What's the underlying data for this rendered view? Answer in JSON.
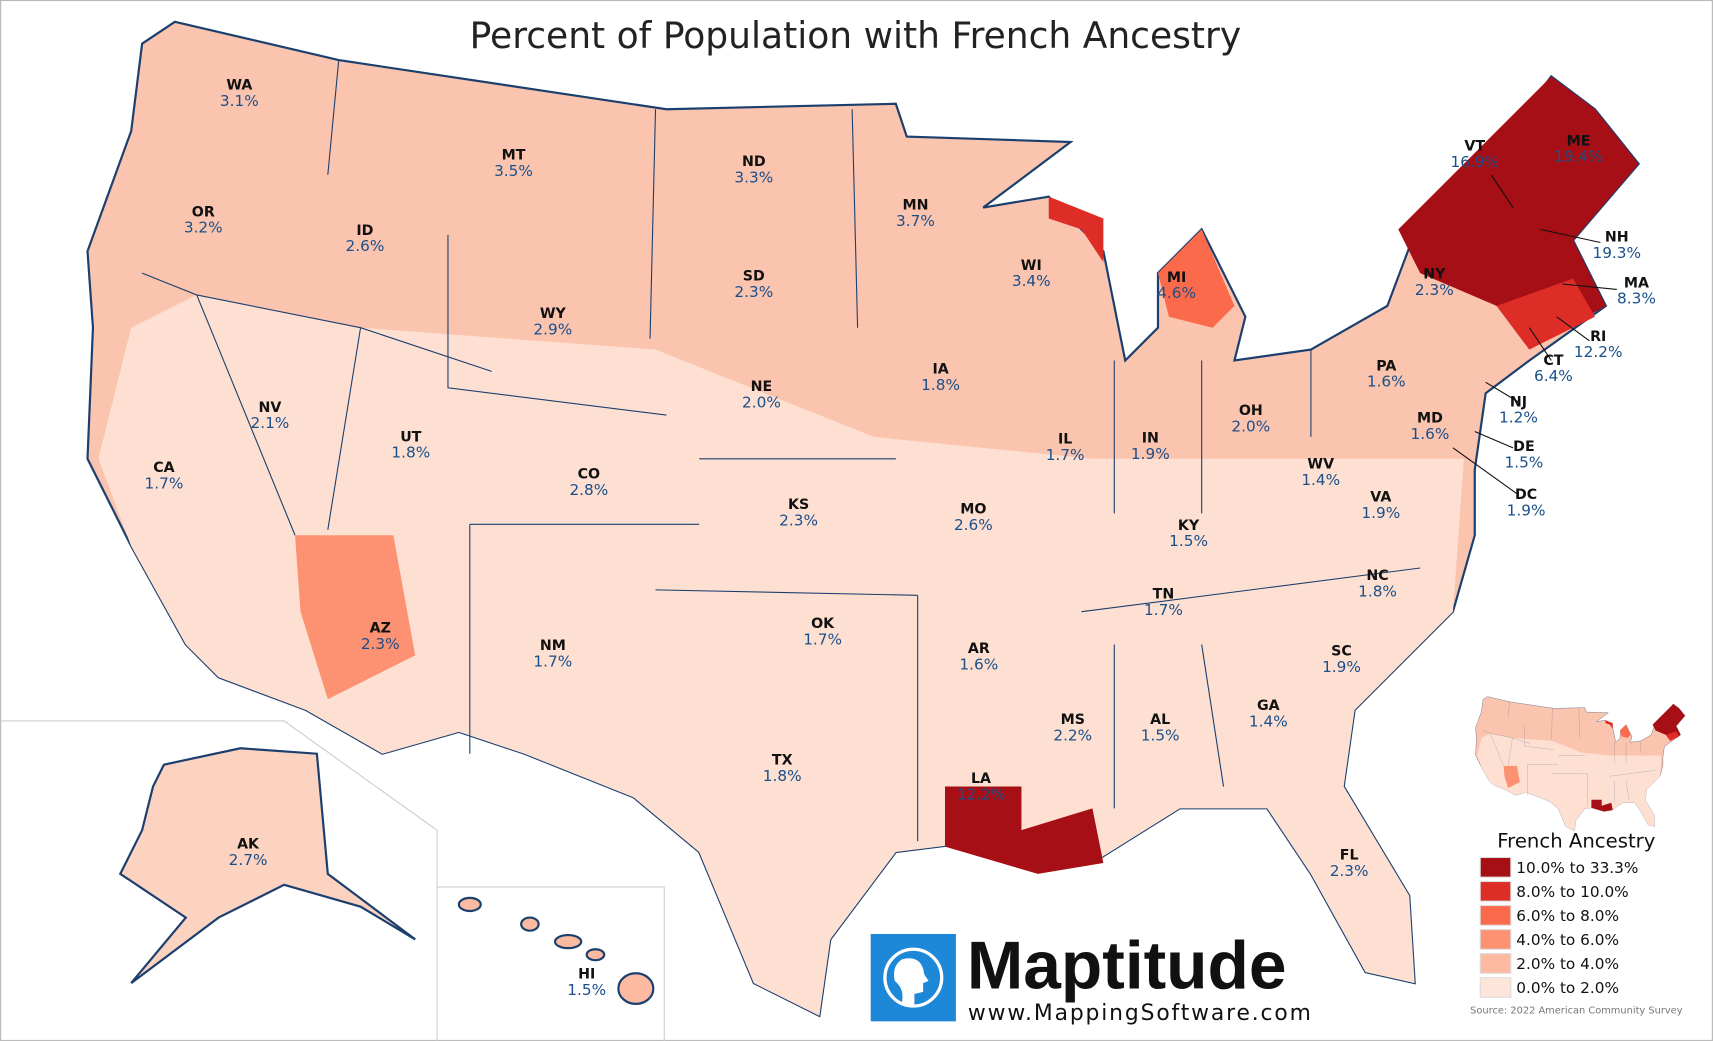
{
  "title": "Percent of Population with French Ancestry",
  "legend": {
    "title": "French Ancestry",
    "classes": [
      {
        "label": "10.0% to 33.3%",
        "color": "#a50f15"
      },
      {
        "label": "8.0% to 10.0%",
        "color": "#de2d26"
      },
      {
        "label": "6.0% to 8.0%",
        "color": "#fb6a4a"
      },
      {
        "label": "4.0% to 6.0%",
        "color": "#fc9272"
      },
      {
        "label": "2.0% to 4.0%",
        "color": "#fcbba1"
      },
      {
        "label": "0.0% to 2.0%",
        "color": "#fee5d9"
      }
    ]
  },
  "source": "Source: 2022 American Community Survey",
  "branding": {
    "name": "Maptitude",
    "url": "www.MappingSoftware.com",
    "logo_icon": "maptitude-globe-head-logo"
  },
  "colors": {
    "border": "#1b3f6e",
    "label_value": "#1a4f8a"
  },
  "states": [
    {
      "abbr": "WA",
      "value": "3.1%"
    },
    {
      "abbr": "MT",
      "value": "3.5%"
    },
    {
      "abbr": "ND",
      "value": "3.3%"
    },
    {
      "abbr": "MN",
      "value": "3.7%"
    },
    {
      "abbr": "OR",
      "value": "3.2%"
    },
    {
      "abbr": "ID",
      "value": "2.6%"
    },
    {
      "abbr": "SD",
      "value": "2.3%"
    },
    {
      "abbr": "WY",
      "value": "2.9%"
    },
    {
      "abbr": "WI",
      "value": "3.4%"
    },
    {
      "abbr": "MI",
      "value": "4.6%"
    },
    {
      "abbr": "NY",
      "value": "2.3%"
    },
    {
      "abbr": "VT",
      "value": "16.9%"
    },
    {
      "abbr": "ME",
      "value": "19.4%"
    },
    {
      "abbr": "NH",
      "value": "19.3%"
    },
    {
      "abbr": "MA",
      "value": "8.3%"
    },
    {
      "abbr": "RI",
      "value": "12.2%"
    },
    {
      "abbr": "CT",
      "value": "6.4%"
    },
    {
      "abbr": "IA",
      "value": "1.8%"
    },
    {
      "abbr": "NE",
      "value": "2.0%"
    },
    {
      "abbr": "NV",
      "value": "2.1%"
    },
    {
      "abbr": "UT",
      "value": "1.8%"
    },
    {
      "abbr": "PA",
      "value": "1.6%"
    },
    {
      "abbr": "OH",
      "value": "2.0%"
    },
    {
      "abbr": "IL",
      "value": "1.7%"
    },
    {
      "abbr": "IN",
      "value": "1.9%"
    },
    {
      "abbr": "NJ",
      "value": "1.2%"
    },
    {
      "abbr": "MD",
      "value": "1.6%"
    },
    {
      "abbr": "DE",
      "value": "1.5%"
    },
    {
      "abbr": "DC",
      "value": "1.9%"
    },
    {
      "abbr": "CA",
      "value": "1.7%"
    },
    {
      "abbr": "CO",
      "value": "2.8%"
    },
    {
      "abbr": "KS",
      "value": "2.3%"
    },
    {
      "abbr": "MO",
      "value": "2.6%"
    },
    {
      "abbr": "WV",
      "value": "1.4%"
    },
    {
      "abbr": "VA",
      "value": "1.9%"
    },
    {
      "abbr": "KY",
      "value": "1.5%"
    },
    {
      "abbr": "TN",
      "value": "1.7%"
    },
    {
      "abbr": "NC",
      "value": "1.8%"
    },
    {
      "abbr": "OK",
      "value": "1.7%"
    },
    {
      "abbr": "AR",
      "value": "1.6%"
    },
    {
      "abbr": "AZ",
      "value": "2.3%"
    },
    {
      "abbr": "NM",
      "value": "1.7%"
    },
    {
      "abbr": "SC",
      "value": "1.9%"
    },
    {
      "abbr": "MS",
      "value": "2.2%"
    },
    {
      "abbr": "AL",
      "value": "1.5%"
    },
    {
      "abbr": "GA",
      "value": "1.4%"
    },
    {
      "abbr": "TX",
      "value": "1.8%"
    },
    {
      "abbr": "LA",
      "value": "12.2%"
    },
    {
      "abbr": "AK",
      "value": "2.7%"
    },
    {
      "abbr": "FL",
      "value": "2.3%"
    },
    {
      "abbr": "HI",
      "value": "1.5%"
    }
  ]
}
